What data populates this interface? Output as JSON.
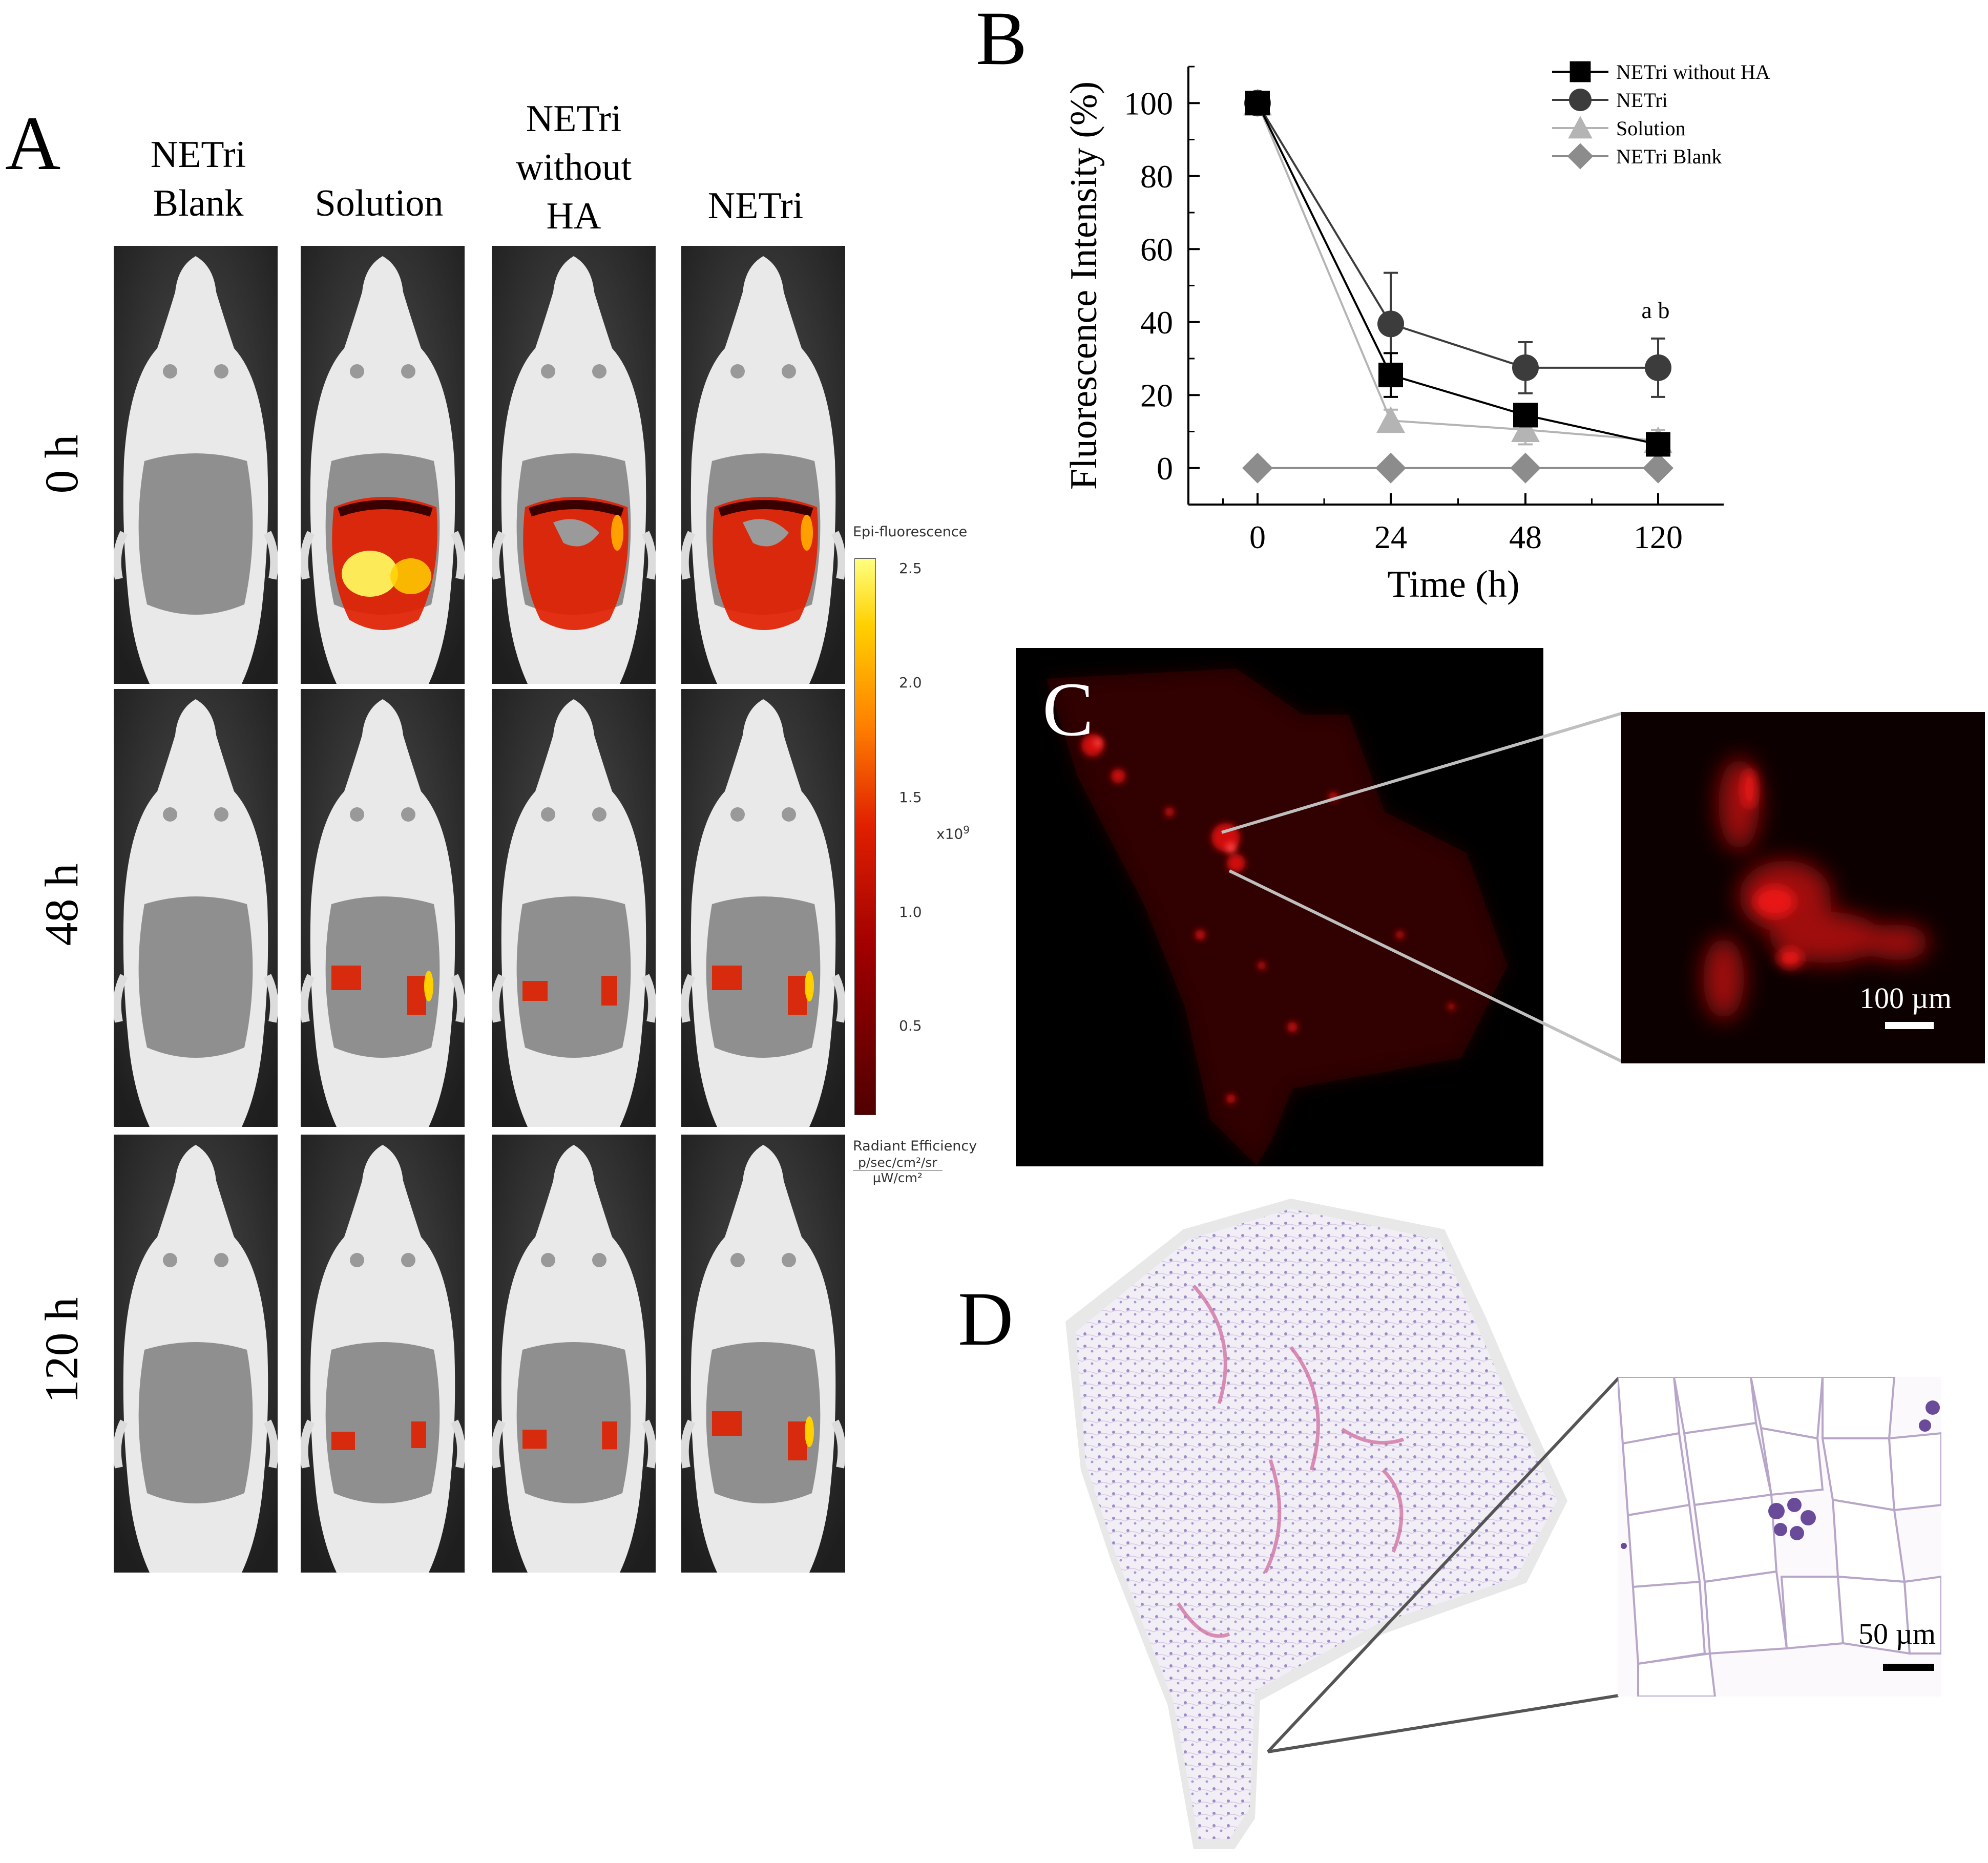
{
  "panels": {
    "A": "A",
    "B": "B",
    "C": "C",
    "D": "D"
  },
  "panelA": {
    "columns": [
      "NETri\nBlank",
      "Solution",
      "NETri\nwithout\nHA",
      "NETri"
    ],
    "rows": [
      "0 h",
      "48 h",
      "120 h"
    ],
    "intensity": [
      [
        0,
        1.0,
        0.75,
        0.6
      ],
      [
        0,
        0.3,
        0.15,
        0.3
      ],
      [
        0,
        0.1,
        0.12,
        0.3
      ]
    ],
    "colorbar": {
      "title": "Epi-fluorescence",
      "ticks": [
        "2.5",
        "2.0",
        "1.5",
        "1.0",
        "0.5"
      ],
      "multiplier": "x10",
      "exponent": "9",
      "unit_title": "Radiant Efficiency",
      "unit_num": "p/sec/cm²/sr",
      "unit_den": "µW/cm²"
    },
    "colors": {
      "low": "#3a0000",
      "mid": "#e02000",
      "high": "#ffff60"
    }
  },
  "chart_data": {
    "type": "line",
    "xlabel": "Time (h)",
    "ylabel": "Fluorescence Intensity (%)",
    "categories": [
      "0",
      "24",
      "48",
      "120"
    ],
    "ylim": [
      -10,
      110
    ],
    "yticks": [
      "0",
      "20",
      "40",
      "60",
      "80",
      "100"
    ],
    "annotation": "a b",
    "series": [
      {
        "name": "NETri without HA",
        "marker": "square",
        "color": "#000000",
        "values": [
          100,
          25.5,
          14.5,
          6.5
        ],
        "err": [
          0,
          6,
          2,
          3
        ]
      },
      {
        "name": "NETri",
        "marker": "circle",
        "color": "#3c3c3c",
        "values": [
          100,
          39.5,
          27.5,
          27.5
        ],
        "err": [
          0,
          14,
          7,
          8
        ]
      },
      {
        "name": "Solution",
        "marker": "triangle",
        "color": "#b4b4b4",
        "values": [
          100,
          13,
          10.5,
          7.5
        ],
        "err": [
          0,
          3,
          4,
          3
        ]
      },
      {
        "name": "NETri Blank",
        "marker": "diamond",
        "color": "#8c8c8c",
        "values": [
          0,
          0,
          0,
          0
        ],
        "err": [
          0,
          0,
          0,
          0
        ]
      }
    ]
  },
  "panelC": {
    "scale_label": "100 µm"
  },
  "panelD": {
    "scale_label": "50 µm"
  }
}
